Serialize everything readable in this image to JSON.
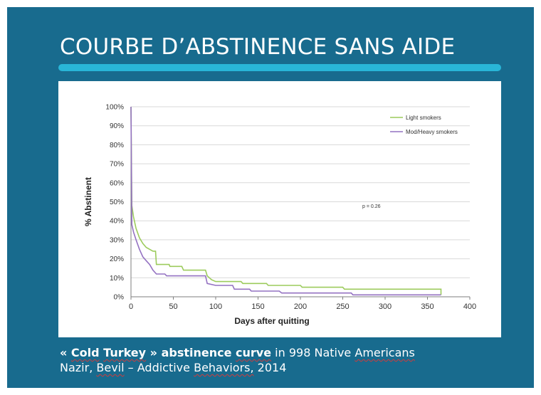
{
  "slide": {
    "title": "COURBE D’ABSTINENCE SANS AIDE",
    "accent_color": "#29b6d8",
    "background_color": "#186b8e",
    "caption": {
      "line1_q_open": "« ",
      "line1_w1": "Cold",
      "line1_w2": "Turkey",
      "line1_q_close": " »",
      "line1_w3": "abstinence",
      "line1_w4": "curve",
      "line1_w5": "in 998 Native",
      "line1_w6": "Americans",
      "line2_w1": "Nazir,",
      "line2_w2": "Bevil",
      "line2_w3": "– Addictive",
      "line2_w4": "Behaviors,",
      "line2_w5": "2014"
    }
  },
  "chart_data": {
    "type": "line",
    "title": "",
    "xlabel": "Days after quitting",
    "ylabel": "% Abstinent",
    "xlim": [
      0,
      400
    ],
    "ylim": [
      0,
      100
    ],
    "x_ticks": [
      0,
      50,
      100,
      150,
      200,
      250,
      300,
      350,
      400
    ],
    "x_tick_labels": [
      "0",
      "50",
      "100",
      "150",
      "200",
      "250",
      "300",
      "350",
      "400"
    ],
    "y_ticks": [
      0,
      10,
      20,
      30,
      40,
      50,
      60,
      70,
      80,
      90,
      100
    ],
    "y_tick_labels": [
      "0%",
      "10%",
      "20%",
      "30%",
      "40%",
      "50%",
      "60%",
      "70%",
      "80%",
      "90%",
      "100%"
    ],
    "grid": "horizontal",
    "legend_position": "top-right",
    "annotation": "p = 0.26",
    "series": [
      {
        "name": "Light smokers",
        "color": "#9ccb5c",
        "points": [
          [
            0,
            100
          ],
          [
            1,
            48
          ],
          [
            3,
            42
          ],
          [
            6,
            36
          ],
          [
            10,
            31
          ],
          [
            14,
            28
          ],
          [
            18,
            26
          ],
          [
            22,
            25
          ],
          [
            26,
            24
          ],
          [
            29,
            24
          ],
          [
            30,
            17
          ],
          [
            45,
            17
          ],
          [
            46,
            16
          ],
          [
            60,
            16
          ],
          [
            62,
            14
          ],
          [
            88,
            14
          ],
          [
            90,
            11
          ],
          [
            95,
            9
          ],
          [
            100,
            8
          ],
          [
            130,
            8
          ],
          [
            132,
            7
          ],
          [
            160,
            7
          ],
          [
            162,
            6
          ],
          [
            180,
            6
          ],
          [
            200,
            6
          ],
          [
            202,
            5
          ],
          [
            250,
            5
          ],
          [
            252,
            4
          ],
          [
            300,
            4
          ],
          [
            330,
            4
          ],
          [
            360,
            4
          ],
          [
            366,
            4
          ],
          [
            366,
            1
          ]
        ]
      },
      {
        "name": "Mod/Heavy smokers",
        "color": "#9472c2",
        "points": [
          [
            0,
            100
          ],
          [
            1,
            38
          ],
          [
            3,
            34
          ],
          [
            6,
            30
          ],
          [
            10,
            25
          ],
          [
            14,
            21
          ],
          [
            18,
            19
          ],
          [
            22,
            17
          ],
          [
            26,
            14
          ],
          [
            30,
            12
          ],
          [
            40,
            12
          ],
          [
            42,
            11
          ],
          [
            88,
            11
          ],
          [
            90,
            7
          ],
          [
            100,
            6
          ],
          [
            120,
            6
          ],
          [
            122,
            4
          ],
          [
            140,
            4
          ],
          [
            142,
            3
          ],
          [
            175,
            3
          ],
          [
            178,
            2
          ],
          [
            260,
            2
          ],
          [
            262,
            1
          ],
          [
            366,
            1
          ]
        ]
      }
    ]
  }
}
